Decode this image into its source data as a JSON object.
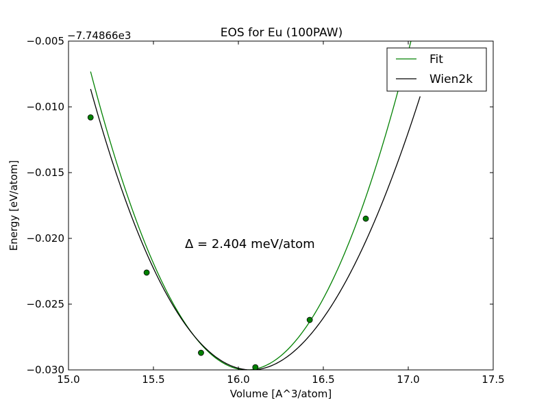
{
  "chart_data": {
    "type": "line",
    "title": "EOS for Eu (100PAW)",
    "xlabel": "Volume [A^3/atom]",
    "ylabel": "Energy [eV/atom]",
    "offset_label": "−7.74866e3",
    "xlim": [
      15.0,
      17.5
    ],
    "ylim": [
      -0.03,
      -0.005
    ],
    "xticks": [
      15.0,
      15.5,
      16.0,
      16.5,
      17.0,
      17.5
    ],
    "xtick_labels": [
      "15.0",
      "15.5",
      "16.0",
      "16.5",
      "17.0",
      "17.5"
    ],
    "yticks": [
      -0.03,
      -0.025,
      -0.02,
      -0.015,
      -0.01,
      -0.005
    ],
    "ytick_labels": [
      "−0.030",
      "−0.025",
      "−0.020",
      "−0.015",
      "−0.010",
      "−0.005"
    ],
    "grid": false,
    "legend_position": "top-right",
    "annotation": "Δ = 2.404 meV/atom",
    "series": [
      {
        "name": "Fit",
        "color": "#008000",
        "kind": "curve",
        "fit": {
          "v0": 16.05,
          "emin": -0.03,
          "a": 0.0268,
          "b": 0.0
        }
      },
      {
        "name": "Wien2k",
        "color": "#000000",
        "kind": "curve",
        "fit": {
          "v0": 16.075,
          "emin": -0.03,
          "a": 0.0225,
          "b": -0.0015
        }
      }
    ],
    "points": {
      "color": "#008000",
      "x": [
        15.13,
        15.46,
        15.78,
        16.1,
        16.42,
        16.75
      ],
      "y": [
        -0.0108,
        -0.0226,
        -0.0287,
        -0.0298,
        -0.0262,
        -0.0185
      ]
    }
  }
}
